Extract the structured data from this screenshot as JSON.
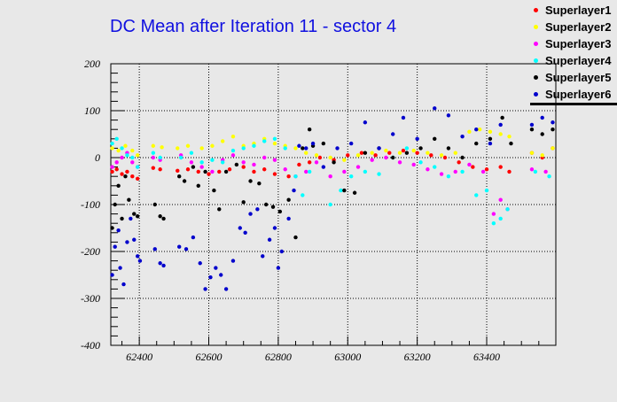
{
  "chart_data": {
    "type": "scatter",
    "title": "DC Mean after Iteration 11 - sector 4",
    "xlabel": "",
    "ylabel": "",
    "xlim": [
      62318,
      63599
    ],
    "ylim": [
      -400,
      200
    ],
    "xticks": [
      62400,
      62600,
      62800,
      63000,
      63200,
      63400
    ],
    "yticks": [
      200,
      100,
      0,
      -100,
      -200,
      -300,
      -400
    ],
    "grid": true,
    "legend_position": "top-right",
    "series": [
      {
        "name": "Superlayer1",
        "color": "#ff0000",
        "points": [
          [
            62322,
            -30
          ],
          [
            62335,
            -25
          ],
          [
            62350,
            -35
          ],
          [
            62365,
            -30
          ],
          [
            62380,
            -40
          ],
          [
            62395,
            -45
          ],
          [
            62440,
            -22
          ],
          [
            62460,
            -25
          ],
          [
            62510,
            -28
          ],
          [
            62540,
            -25
          ],
          [
            62570,
            -30
          ],
          [
            62600,
            -35
          ],
          [
            62630,
            -30
          ],
          [
            62660,
            -25
          ],
          [
            62700,
            -20
          ],
          [
            62730,
            -30
          ],
          [
            62760,
            -25
          ],
          [
            62790,
            -35
          ],
          [
            62830,
            -40
          ],
          [
            62860,
            -15
          ],
          [
            62890,
            -10
          ],
          [
            62920,
            0
          ],
          [
            62960,
            -5
          ],
          [
            63000,
            5
          ],
          [
            63040,
            10
          ],
          [
            63080,
            5
          ],
          [
            63120,
            10
          ],
          [
            63160,
            15
          ],
          [
            63200,
            10
          ],
          [
            63240,
            5
          ],
          [
            63280,
            0
          ],
          [
            63320,
            -10
          ],
          [
            63360,
            -20
          ],
          [
            63400,
            -25
          ],
          [
            63440,
            -20
          ],
          [
            63465,
            -30
          ],
          [
            63530,
            10
          ],
          [
            63560,
            0
          ],
          [
            63590,
            20
          ]
        ]
      },
      {
        "name": "Superlayer2",
        "color": "#ffff00",
        "points": [
          [
            62322,
            20
          ],
          [
            62340,
            15
          ],
          [
            62360,
            25
          ],
          [
            62380,
            15
          ],
          [
            62395,
            5
          ],
          [
            62440,
            25
          ],
          [
            62465,
            22
          ],
          [
            62510,
            20
          ],
          [
            62540,
            25
          ],
          [
            62580,
            20
          ],
          [
            62610,
            25
          ],
          [
            62640,
            35
          ],
          [
            62670,
            45
          ],
          [
            62700,
            25
          ],
          [
            62730,
            30
          ],
          [
            62760,
            40
          ],
          [
            62790,
            30
          ],
          [
            62820,
            25
          ],
          [
            62850,
            20
          ],
          [
            62880,
            10
          ],
          [
            62910,
            5
          ],
          [
            62950,
            0
          ],
          [
            62990,
            -5
          ],
          [
            63030,
            5
          ],
          [
            63070,
            10
          ],
          [
            63110,
            15
          ],
          [
            63150,
            10
          ],
          [
            63190,
            15
          ],
          [
            63230,
            10
          ],
          [
            63270,
            5
          ],
          [
            63310,
            10
          ],
          [
            63350,
            55
          ],
          [
            63380,
            60
          ],
          [
            63410,
            55
          ],
          [
            63440,
            50
          ],
          [
            63465,
            45
          ],
          [
            63530,
            10
          ],
          [
            63560,
            5
          ],
          [
            63590,
            20
          ]
        ]
      },
      {
        "name": "Superlayer3",
        "color": "#ff00ff",
        "points": [
          [
            62322,
            -20
          ],
          [
            62335,
            -10
          ],
          [
            62350,
            0
          ],
          [
            62365,
            10
          ],
          [
            62380,
            -10
          ],
          [
            62395,
            -20
          ],
          [
            62440,
            0
          ],
          [
            62460,
            -5
          ],
          [
            62520,
            5
          ],
          [
            62550,
            -10
          ],
          [
            62580,
            -20
          ],
          [
            62610,
            -30
          ],
          [
            62640,
            -5
          ],
          [
            62670,
            5
          ],
          [
            62700,
            -10
          ],
          [
            62730,
            -15
          ],
          [
            62760,
            0
          ],
          [
            62790,
            -5
          ],
          [
            62820,
            -25
          ],
          [
            62850,
            -40
          ],
          [
            62880,
            -30
          ],
          [
            62910,
            -10
          ],
          [
            62950,
            -40
          ],
          [
            62990,
            -30
          ],
          [
            63030,
            -20
          ],
          [
            63070,
            -5
          ],
          [
            63110,
            0
          ],
          [
            63150,
            -10
          ],
          [
            63190,
            -15
          ],
          [
            63230,
            -25
          ],
          [
            63270,
            -35
          ],
          [
            63310,
            -30
          ],
          [
            63350,
            -15
          ],
          [
            63390,
            -30
          ],
          [
            63420,
            -120
          ],
          [
            63440,
            -90
          ],
          [
            63460,
            -110
          ],
          [
            63530,
            -25
          ],
          [
            63570,
            -30
          ]
        ]
      },
      {
        "name": "Superlayer4",
        "color": "#00ffff",
        "points": [
          [
            62322,
            30
          ],
          [
            62335,
            40
          ],
          [
            62350,
            20
          ],
          [
            62365,
            5
          ],
          [
            62380,
            0
          ],
          [
            62395,
            -20
          ],
          [
            62440,
            10
          ],
          [
            62460,
            0
          ],
          [
            62520,
            0
          ],
          [
            62550,
            10
          ],
          [
            62580,
            -10
          ],
          [
            62610,
            -5
          ],
          [
            62640,
            -10
          ],
          [
            62670,
            15
          ],
          [
            62700,
            20
          ],
          [
            62730,
            25
          ],
          [
            62760,
            35
          ],
          [
            62790,
            40
          ],
          [
            62820,
            20
          ],
          [
            62850,
            -40
          ],
          [
            62870,
            -80
          ],
          [
            62890,
            -30
          ],
          [
            62950,
            -100
          ],
          [
            62980,
            -70
          ],
          [
            63010,
            -40
          ],
          [
            63050,
            -30
          ],
          [
            63090,
            -35
          ],
          [
            63130,
            0
          ],
          [
            63170,
            20
          ],
          [
            63210,
            -10
          ],
          [
            63250,
            -20
          ],
          [
            63290,
            -40
          ],
          [
            63330,
            -30
          ],
          [
            63370,
            -80
          ],
          [
            63400,
            -70
          ],
          [
            63420,
            -140
          ],
          [
            63440,
            -130
          ],
          [
            63460,
            -110
          ],
          [
            63540,
            -30
          ],
          [
            63580,
            -40
          ]
        ]
      },
      {
        "name": "Superlayer5",
        "color": "#000000",
        "points": [
          [
            62322,
            -150
          ],
          [
            62330,
            -100
          ],
          [
            62340,
            -60
          ],
          [
            62350,
            -130
          ],
          [
            62360,
            -40
          ],
          [
            62370,
            -90
          ],
          [
            62385,
            -120
          ],
          [
            62395,
            -125
          ],
          [
            62445,
            -100
          ],
          [
            62460,
            -125
          ],
          [
            62470,
            -130
          ],
          [
            62515,
            -40
          ],
          [
            62530,
            -50
          ],
          [
            62555,
            -20
          ],
          [
            62570,
            -60
          ],
          [
            62590,
            -30
          ],
          [
            62615,
            -70
          ],
          [
            62630,
            -110
          ],
          [
            62650,
            -30
          ],
          [
            62680,
            -15
          ],
          [
            62700,
            -95
          ],
          [
            62720,
            -50
          ],
          [
            62745,
            -55
          ],
          [
            62765,
            -100
          ],
          [
            62785,
            -105
          ],
          [
            62805,
            -115
          ],
          [
            62830,
            -90
          ],
          [
            62850,
            -170
          ],
          [
            62870,
            20
          ],
          [
            62890,
            60
          ],
          [
            62900,
            25
          ],
          [
            62930,
            30
          ],
          [
            62960,
            -10
          ],
          [
            62990,
            -70
          ],
          [
            63020,
            -75
          ],
          [
            63050,
            10
          ],
          [
            63090,
            20
          ],
          [
            63130,
            0
          ],
          [
            63170,
            10
          ],
          [
            63210,
            20
          ],
          [
            63250,
            40
          ],
          [
            63290,
            20
          ],
          [
            63330,
            0
          ],
          [
            63370,
            30
          ],
          [
            63410,
            40
          ],
          [
            63445,
            85
          ],
          [
            63470,
            30
          ],
          [
            63530,
            60
          ],
          [
            63560,
            50
          ],
          [
            63590,
            60
          ]
        ]
      },
      {
        "name": "Superlayer6",
        "color": "#0000cc",
        "points": [
          [
            62322,
            -250
          ],
          [
            62330,
            -190
          ],
          [
            62340,
            -155
          ],
          [
            62345,
            -235
          ],
          [
            62355,
            -270
          ],
          [
            62365,
            -180
          ],
          [
            62375,
            -130
          ],
          [
            62385,
            -175
          ],
          [
            62395,
            -210
          ],
          [
            62402,
            -220
          ],
          [
            62445,
            -195
          ],
          [
            62460,
            -225
          ],
          [
            62470,
            -230
          ],
          [
            62515,
            -190
          ],
          [
            62535,
            -195
          ],
          [
            62555,
            -170
          ],
          [
            62575,
            -225
          ],
          [
            62590,
            -280
          ],
          [
            62605,
            -255
          ],
          [
            62620,
            -235
          ],
          [
            62635,
            -250
          ],
          [
            62650,
            -280
          ],
          [
            62670,
            -220
          ],
          [
            62690,
            -150
          ],
          [
            62705,
            -160
          ],
          [
            62720,
            -120
          ],
          [
            62740,
            -110
          ],
          [
            62755,
            -210
          ],
          [
            62775,
            -175
          ],
          [
            62790,
            -150
          ],
          [
            62800,
            -235
          ],
          [
            62810,
            -200
          ],
          [
            62830,
            -130
          ],
          [
            62845,
            -70
          ],
          [
            62860,
            25
          ],
          [
            62880,
            20
          ],
          [
            62900,
            30
          ],
          [
            62930,
            -20
          ],
          [
            62970,
            20
          ],
          [
            63010,
            30
          ],
          [
            63050,
            75
          ],
          [
            63090,
            20
          ],
          [
            63130,
            50
          ],
          [
            63160,
            85
          ],
          [
            63200,
            40
          ],
          [
            63250,
            105
          ],
          [
            63290,
            90
          ],
          [
            63330,
            45
          ],
          [
            63370,
            60
          ],
          [
            63410,
            30
          ],
          [
            63440,
            70
          ],
          [
            63530,
            70
          ],
          [
            63560,
            85
          ],
          [
            63590,
            75
          ]
        ]
      }
    ]
  }
}
